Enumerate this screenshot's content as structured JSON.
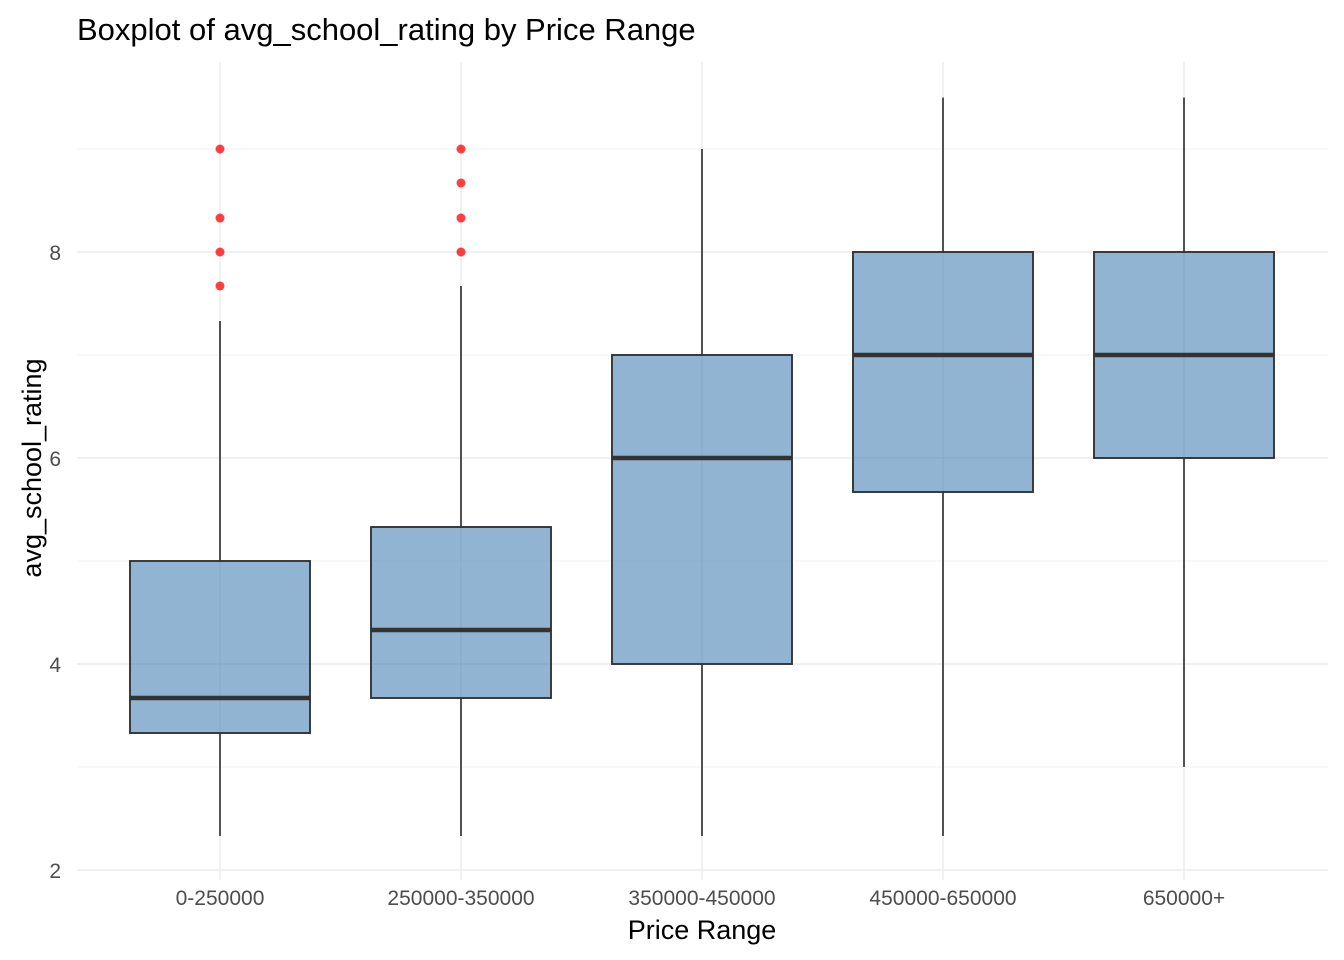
{
  "chart_data": {
    "type": "boxplot",
    "title": "Boxplot of avg_school_rating by Price Range",
    "xlabel": "Price Range",
    "ylabel": "avg_school_rating",
    "categories": [
      "0-250000",
      "250000-350000",
      "350000-450000",
      "450000-650000",
      "650000+"
    ],
    "ylim": [
      2,
      9.8
    ],
    "y_ticks": [
      2,
      4,
      6,
      8
    ],
    "grid": true,
    "box_color": "#4682b4",
    "box_border_color": "#333333",
    "outlier_color": "#ff0000",
    "boxes": [
      {
        "category": "0-250000",
        "whisker_low": 2.33,
        "q1": 3.33,
        "median": 3.67,
        "q3": 5.0,
        "whisker_high": 7.33,
        "outliers": [
          7.67,
          8.0,
          8.33,
          9.0
        ]
      },
      {
        "category": "250000-350000",
        "whisker_low": 2.33,
        "q1": 3.67,
        "median": 4.33,
        "q3": 5.33,
        "whisker_high": 7.67,
        "outliers": [
          8.0,
          8.33,
          8.67,
          9.0
        ]
      },
      {
        "category": "350000-450000",
        "whisker_low": 2.33,
        "q1": 4.0,
        "median": 6.0,
        "q3": 7.0,
        "whisker_high": 9.0,
        "outliers": []
      },
      {
        "category": "450000-650000",
        "whisker_low": 2.33,
        "q1": 5.67,
        "median": 7.0,
        "q3": 8.0,
        "whisker_high": 9.5,
        "outliers": []
      },
      {
        "category": "650000+",
        "whisker_low": 3.0,
        "q1": 6.0,
        "median": 7.0,
        "q3": 8.0,
        "whisker_high": 9.5,
        "outliers": []
      }
    ]
  }
}
